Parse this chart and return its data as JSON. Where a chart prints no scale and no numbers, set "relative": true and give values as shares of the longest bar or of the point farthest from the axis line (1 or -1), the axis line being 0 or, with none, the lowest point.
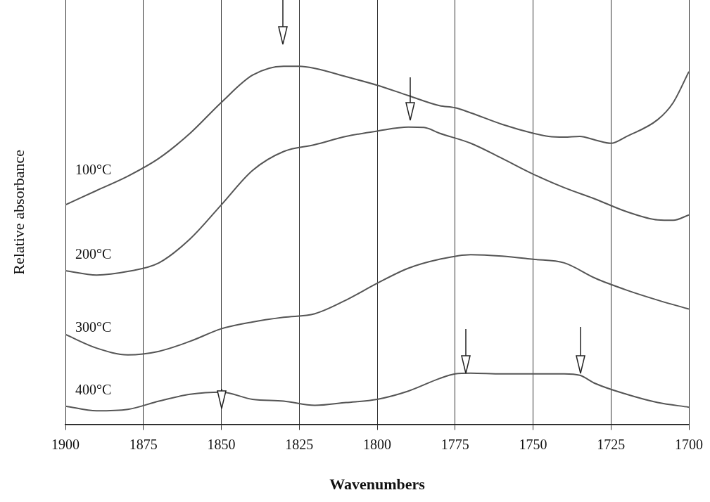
{
  "chart_data": {
    "type": "line",
    "xlabel": "Wavenumbers",
    "ylabel": "Relative absorbance",
    "relative": true,
    "xlim": [
      1900,
      1700
    ],
    "xticks": [
      1900,
      1875,
      1850,
      1825,
      1800,
      1775,
      1750,
      1725,
      1700
    ],
    "grid": "x",
    "marker": "none",
    "line_style": "solid",
    "series": [
      {
        "name": "100°C",
        "color": "#555555",
        "x": [
          1900,
          1890,
          1880,
          1870,
          1860,
          1850,
          1840,
          1830,
          1825,
          1820,
          1810,
          1800,
          1790,
          1780,
          1775,
          1770,
          1760,
          1750,
          1745,
          1740,
          1735,
          1730,
          1725,
          1720,
          1710,
          1705,
          1700
        ],
        "values": [
          0.613,
          0.653,
          0.693,
          0.743,
          0.813,
          0.899,
          0.975,
          1.0,
          1.0,
          0.994,
          0.971,
          0.947,
          0.918,
          0.89,
          0.884,
          0.87,
          0.838,
          0.813,
          0.804,
          0.802,
          0.804,
          0.794,
          0.785,
          0.804,
          0.851,
          0.899,
          0.985
        ]
      },
      {
        "name": "200°C",
        "color": "#555555",
        "x": [
          1900,
          1890,
          1880,
          1870,
          1860,
          1850,
          1840,
          1830,
          1820,
          1810,
          1800,
          1790,
          1785,
          1780,
          1770,
          1760,
          1750,
          1740,
          1730,
          1720,
          1710,
          1705,
          1700
        ],
        "values": [
          0.429,
          0.417,
          0.427,
          0.451,
          0.518,
          0.613,
          0.709,
          0.762,
          0.781,
          0.804,
          0.819,
          0.83,
          0.829,
          0.813,
          0.785,
          0.743,
          0.699,
          0.661,
          0.629,
          0.594,
          0.571,
          0.57,
          0.585
        ]
      },
      {
        "name": "300°C",
        "color": "#555555",
        "x": [
          1900,
          1890,
          1880,
          1870,
          1860,
          1850,
          1840,
          1830,
          1820,
          1810,
          1800,
          1790,
          1780,
          1770,
          1760,
          1750,
          1740,
          1730,
          1720,
          1710,
          1700
        ],
        "values": [
          0.251,
          0.213,
          0.194,
          0.204,
          0.232,
          0.267,
          0.286,
          0.299,
          0.309,
          0.347,
          0.394,
          0.436,
          0.461,
          0.474,
          0.47,
          0.461,
          0.451,
          0.408,
          0.375,
          0.347,
          0.322
        ]
      },
      {
        "name": "400°C",
        "color": "#555555",
        "x": [
          1900,
          1890,
          1880,
          1870,
          1860,
          1850,
          1840,
          1830,
          1820,
          1810,
          1800,
          1790,
          1780,
          1775,
          1770,
          1760,
          1750,
          1740,
          1735,
          1730,
          1720,
          1710,
          1700
        ],
        "values": [
          0.051,
          0.038,
          0.042,
          0.065,
          0.084,
          0.09,
          0.07,
          0.065,
          0.053,
          0.061,
          0.07,
          0.093,
          0.128,
          0.141,
          0.143,
          0.141,
          0.141,
          0.141,
          0.137,
          0.114,
          0.084,
          0.061,
          0.048
        ]
      }
    ]
  }
}
